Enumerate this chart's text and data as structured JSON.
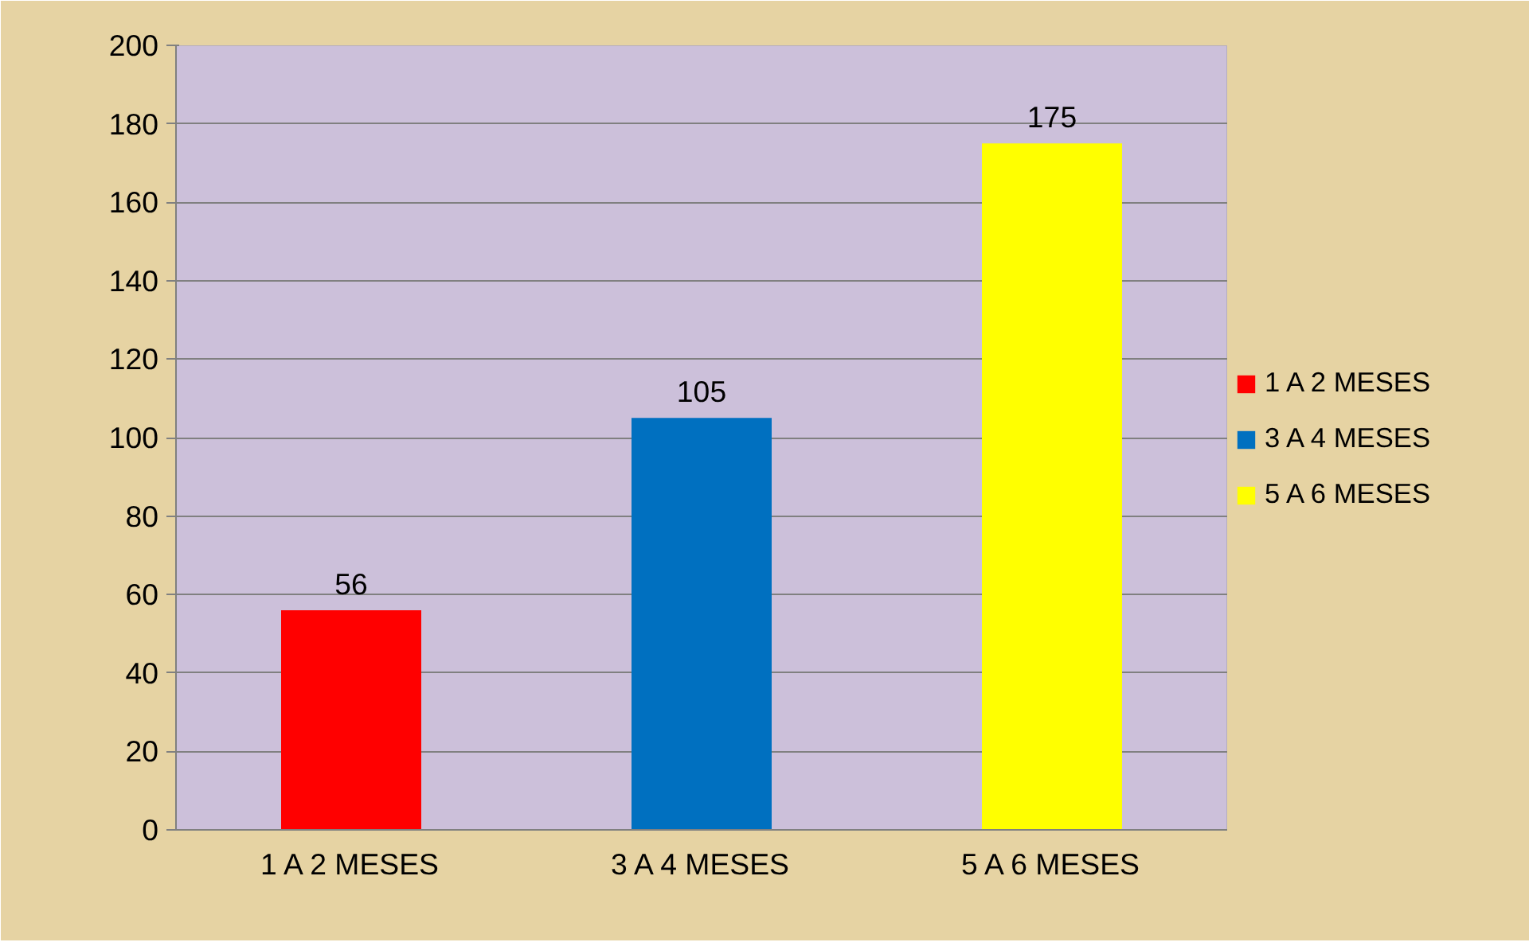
{
  "chart_data": {
    "type": "bar",
    "categories": [
      "1 A 2 MESES",
      "3 A 4 MESES",
      "5 A 6 MESES"
    ],
    "series": [
      {
        "name": "1 A 2 MESES",
        "color": "#ff0000",
        "values": [
          56,
          null,
          null
        ]
      },
      {
        "name": "3 A 4 MESES",
        "color": "#0070c0",
        "values": [
          null,
          105,
          null
        ]
      },
      {
        "name": "5 A 6 MESES",
        "color": "#ffff00",
        "values": [
          null,
          null,
          175
        ]
      }
    ],
    "ylim": [
      0,
      200
    ],
    "yticks": [
      0,
      20,
      40,
      60,
      80,
      100,
      120,
      140,
      160,
      180,
      200
    ],
    "grid": "y",
    "legend": "right",
    "data_labels": true
  }
}
